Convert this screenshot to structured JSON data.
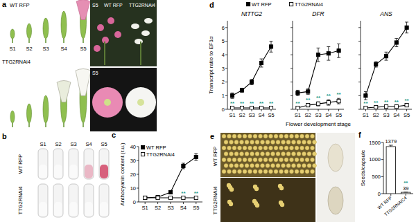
{
  "panel_labels": [
    "a",
    "b",
    "c",
    "d",
    "e",
    "f"
  ],
  "photos": {
    "a": {
      "rows": [
        "WT RFP",
        "TTG2RNAi4"
      ],
      "stages": [
        "S1",
        "S2",
        "S3",
        "S4",
        "S5"
      ],
      "inset_stage": "S5",
      "inset_rows": [
        "WT RFP",
        "TTG2RNAi4"
      ],
      "inset_stage_2": "S5"
    },
    "b": {
      "stages": [
        "S1",
        "S2",
        "S3",
        "S4",
        "S5"
      ],
      "rows": [
        "WT RFP",
        "TTG2RNAi4"
      ]
    },
    "e": {
      "rows": [
        "WT RFP",
        "TTG2RNAi4"
      ]
    }
  },
  "chart_data": [
    {
      "type": "line",
      "ylabel": "Anthocyanin content (r.u.)",
      "categories": [
        "S1",
        "S2",
        "S3",
        "S4",
        "S5"
      ],
      "ylim": [
        0,
        40
      ],
      "yticks": [
        0,
        10,
        20,
        30,
        40
      ],
      "legend": "upper left",
      "series": [
        {
          "name": "WT RFP",
          "color": "#000000",
          "marker": "square",
          "values": [
            3,
            3.5,
            7,
            26,
            32.5
          ],
          "errors": [
            0.5,
            0.8,
            0.8,
            2,
            2.5
          ]
        },
        {
          "name": "TTG2RNAi4",
          "color": "#000000",
          "marker": "square-open",
          "values": [
            3,
            3,
            3,
            3,
            3
          ],
          "errors": [
            0.3,
            0.3,
            0.3,
            0.3,
            0.3
          ]
        }
      ],
      "annotations": [
        {
          "text": "**",
          "series": 1,
          "index": 3
        },
        {
          "text": "**",
          "series": 1,
          "index": 4
        }
      ]
    },
    {
      "type": "line",
      "title": "NtTTG2",
      "ylabel": "Transcript ratio to EF1α",
      "categories": [
        "S1",
        "S2",
        "S3",
        "S4",
        "S5"
      ],
      "ylim": [
        0,
        6.5
      ],
      "yticks": [
        0,
        1,
        2,
        3,
        4,
        5,
        6
      ],
      "legend": "top",
      "series": [
        {
          "name": "WT RFP",
          "color": "#000000",
          "marker": "square",
          "values": [
            1,
            1.4,
            2,
            3.4,
            4.6
          ],
          "errors": [
            0.2,
            0.15,
            0.2,
            0.3,
            0.4
          ]
        },
        {
          "name": "TTG2RNAi4",
          "color": "#000000",
          "marker": "square-open",
          "values": [
            0.1,
            0.1,
            0.1,
            0.1,
            0.1
          ],
          "errors": [
            0.05,
            0.05,
            0.05,
            0.05,
            0.05
          ]
        }
      ],
      "annotations": [
        {
          "text": "**",
          "series": 1,
          "index": 0
        },
        {
          "text": "**",
          "series": 1,
          "index": 1
        },
        {
          "text": "**",
          "series": 1,
          "index": 2
        },
        {
          "text": "**",
          "series": 1,
          "index": 3
        },
        {
          "text": "**",
          "series": 1,
          "index": 4
        }
      ]
    },
    {
      "type": "line",
      "title": "DFR",
      "xlabel": "Flower development stage",
      "categories": [
        "S1",
        "S2",
        "S3",
        "S4",
        "S5"
      ],
      "ylim": [
        0,
        6.5
      ],
      "yticks": [
        0,
        1,
        2,
        3,
        4,
        5,
        6
      ],
      "tick_labels": "x",
      "series": [
        {
          "color": "#000000",
          "marker": "square",
          "values": [
            1.2,
            1.3,
            4,
            4.1,
            4.3
          ],
          "errors": [
            0.2,
            0.2,
            0.5,
            0.5,
            0.5
          ]
        },
        {
          "color": "#000000",
          "marker": "square-open",
          "values": [
            0.1,
            0.3,
            0.4,
            0.5,
            0.6
          ],
          "errors": [
            0.05,
            0.1,
            0.15,
            0.2,
            0.2
          ]
        }
      ],
      "annotations": [
        {
          "text": "**",
          "series": 1,
          "index": 0
        },
        {
          "text": "**",
          "series": 1,
          "index": 1
        },
        {
          "text": "**",
          "series": 1,
          "index": 2
        },
        {
          "text": "**",
          "series": 1,
          "index": 3
        },
        {
          "text": "**",
          "series": 1,
          "index": 4
        }
      ]
    },
    {
      "type": "line",
      "title": "ANS",
      "categories": [
        "S1",
        "S2",
        "S3",
        "S4",
        "S5"
      ],
      "ylim": [
        0,
        6.5
      ],
      "yticks": [
        0,
        1,
        2,
        3,
        4,
        5,
        6
      ],
      "tick_labels": "x",
      "series": [
        {
          "color": "#000000",
          "marker": "square",
          "values": [
            1,
            3.3,
            3.9,
            4.9,
            6
          ],
          "errors": [
            0.3,
            0.2,
            0.3,
            0.3,
            0.4
          ]
        },
        {
          "color": "#000000",
          "marker": "square-open",
          "values": [
            0.1,
            0.15,
            0.2,
            0.2,
            0.3
          ],
          "errors": [
            0.05,
            0.05,
            0.05,
            0.05,
            0.05
          ]
        }
      ],
      "annotations": [
        {
          "text": "**",
          "series": 1,
          "index": 0
        },
        {
          "text": "**",
          "series": 1,
          "index": 1
        },
        {
          "text": "**",
          "series": 1,
          "index": 2
        },
        {
          "text": "**",
          "series": 1,
          "index": 3
        },
        {
          "text": "**",
          "series": 1,
          "index": 4
        }
      ]
    },
    {
      "type": "bar",
      "ylabel": "Seeds/capsule",
      "categories": [
        "WT RFP",
        "TTG2RNAiC4"
      ],
      "values": [
        1379,
        39
      ],
      "errors": [
        40,
        5
      ],
      "color": "#ffffff",
      "ylim": [
        0,
        1500
      ],
      "yticks": [
        0,
        500,
        1000,
        1500
      ],
      "data_labels": true,
      "annotations": [
        {
          "text": "**",
          "index": 1
        }
      ]
    }
  ]
}
